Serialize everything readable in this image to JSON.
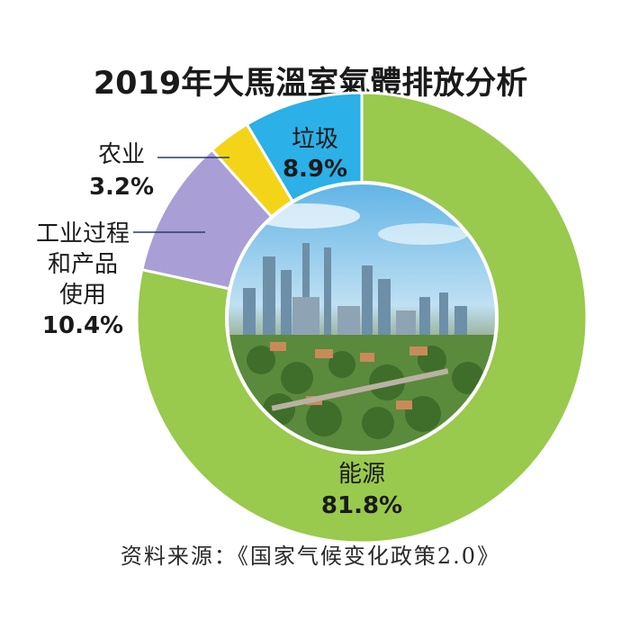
{
  "chart_data": {
    "type": "pie",
    "title": "2019年大馬溫室氣體排放分析",
    "slices": [
      {
        "label": "能源",
        "value": 81.8,
        "display": "81.8%",
        "color": "#99c94d"
      },
      {
        "label": "工业过程和产品使用",
        "value": 10.4,
        "display": "10.4%",
        "color": "#a99fd6"
      },
      {
        "label": "农业",
        "value": 3.2,
        "display": "3.2%",
        "color": "#f4d418"
      },
      {
        "label": "垃圾",
        "value": 8.9,
        "display": "8.9%",
        "color": "#2bb0e8"
      }
    ]
  },
  "labels": {
    "energy_name": "能源",
    "energy_value": "81.8%",
    "waste_name": "垃圾",
    "waste_value": "8.9%",
    "agri_name": "农业",
    "agri_value": "3.2%",
    "industry_line1": "工业过程",
    "industry_line2": "和产品",
    "industry_line3": "使用",
    "industry_value": "10.4%"
  },
  "source": "资料来源：《国家气候变化政策2.0》"
}
